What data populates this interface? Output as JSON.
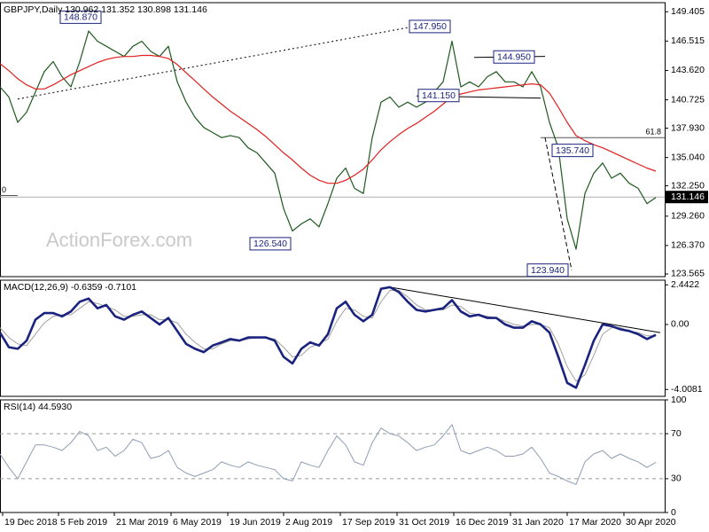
{
  "chart_data": [
    {
      "type": "line",
      "title": "GBPJPY,Daily  130.962 131.352 130.898 131.146",
      "watermark": "ActionForex.com",
      "xlim": [
        0,
        75
      ],
      "ylim": [
        123.3,
        150.3
      ],
      "grid": false,
      "yticks": [
        149.405,
        146.515,
        {
          "value": 143.62,
          "label": "143.620"
        },
        140.725,
        {
          "value": 137.93,
          "label": "137.930"
        },
        {
          "value": 135.04,
          "label": "135.040"
        },
        {
          "value": 132.25,
          "label": "132.250"
        },
        {
          "value": 129.26,
          "label": "129.260"
        },
        {
          "value": 126.37,
          "label": "126.370"
        },
        123.565
      ],
      "last_price": 131.146,
      "series": [
        {
          "color": "#1f5a1f",
          "line_width": 1.2,
          "values": [
            142.0,
            141.0,
            138.5,
            139.5,
            141.5,
            143.5,
            144.5,
            143.0,
            142.0,
            144.5,
            147.5,
            146.5,
            146.0,
            145.5,
            145.0,
            146.0,
            146.5,
            145.5,
            145.0,
            146.0,
            142.5,
            140.5,
            139.0,
            138.0,
            137.5,
            137.0,
            137.2,
            137.0,
            136.0,
            135.5,
            134.5,
            133.5,
            130.0,
            127.8,
            128.5,
            129.0,
            128.2,
            130.5,
            133.0,
            134.0,
            132.0,
            131.5,
            137.0,
            140.5,
            141.0,
            140.0,
            140.5,
            140.0,
            140.5,
            141.5,
            142.5,
            146.5,
            142.0,
            142.5,
            142.0,
            143.0,
            143.5,
            142.5,
            142.5,
            142.0,
            143.5,
            142.0,
            138.5,
            136.0,
            129.0,
            126.0,
            131.5,
            133.5,
            134.5,
            133.0,
            133.5,
            132.5,
            132.0,
            130.5,
            131.1
          ]
        },
        {
          "color": "#e0201e",
          "line_width": 1.2,
          "values": [
            144.3,
            143.6,
            142.8,
            142.2,
            141.8,
            141.8,
            142.2,
            142.7,
            143.2,
            143.6,
            144.0,
            144.4,
            144.7,
            144.9,
            145.0,
            145.0,
            145.1,
            145.1,
            145.0,
            144.8,
            144.2,
            143.4,
            142.6,
            141.8,
            141.0,
            140.3,
            139.6,
            139.0,
            138.4,
            137.8,
            137.1,
            136.3,
            135.5,
            134.8,
            134.0,
            133.3,
            132.8,
            132.5,
            132.5,
            132.8,
            133.3,
            133.9,
            134.8,
            135.8,
            136.6,
            137.3,
            137.9,
            138.4,
            139.0,
            139.6,
            140.3,
            141.0,
            141.3,
            141.5,
            141.7,
            141.8,
            141.9,
            142.0,
            142.1,
            142.2,
            142.3,
            142.2,
            141.4,
            140.0,
            138.5,
            137.2,
            136.7,
            136.3,
            136.0,
            135.6,
            135.2,
            134.8,
            134.4,
            134.0,
            133.7
          ]
        }
      ],
      "annotations": [
        {
          "x": 6.8,
          "value": 148.87,
          "label": "148.870"
        },
        {
          "x": 46.2,
          "value": 147.95,
          "label": "147.950"
        },
        {
          "x": 55.7,
          "value": 144.95,
          "label": "144.950"
        },
        {
          "x": 47.2,
          "value": 141.15,
          "label": "141.150"
        },
        {
          "x": 62.3,
          "value": 135.74,
          "label": "135.740"
        },
        {
          "x": 28.2,
          "value": 126.54,
          "label": "126.540"
        },
        {
          "x": 59.5,
          "value": 123.94,
          "label": "123.940"
        }
      ],
      "fib_levels": [
        {
          "name": "61.8",
          "y": 137.0,
          "x": [
            61,
            75
          ]
        },
        {
          "name": "0",
          "y": 131.3,
          "x": [
            0,
            2
          ]
        }
      ],
      "trendlines": [
        {
          "x": [
            2,
            47
          ],
          "y": [
            140.8,
            148.0
          ],
          "style": "dotted"
        },
        {
          "x": [
            53.5,
            61.5
          ],
          "y": [
            144.9,
            145.0
          ],
          "style": "solid"
        },
        {
          "x": [
            47,
            61
          ],
          "y": [
            141.1,
            140.9
          ],
          "style": "solid"
        },
        {
          "x": [
            61.5,
            64.5
          ],
          "y": [
            137.0,
            123.94
          ],
          "style": "dashed"
        }
      ]
    },
    {
      "type": "line",
      "title": "MACD(12,26,9) -0.6359 -0.7101",
      "xlim": [
        0,
        75
      ],
      "ylim": [
        -4.43,
        2.73
      ],
      "grid": false,
      "yticks": [
        2.4422,
        {
          "value": 0,
          "label": "0.00"
        },
        -4.0081
      ],
      "series": [
        {
          "color": "#a0a0a0",
          "line_width": 1,
          "values": [
            -0.2,
            -0.8,
            -1.2,
            -1.3,
            -0.6,
            0.1,
            0.5,
            0.6,
            0.6,
            1.0,
            1.4,
            1.3,
            1.1,
            0.9,
            0.5,
            0.5,
            0.6,
            0.6,
            0.3,
            0.3,
            0.1,
            -0.6,
            -1.1,
            -1.5,
            -1.5,
            -1.2,
            -1.0,
            -1.0,
            -0.9,
            -0.8,
            -0.8,
            -0.9,
            -1.4,
            -2.0,
            -1.9,
            -1.4,
            -1.2,
            -0.9,
            0.2,
            1.0,
            0.9,
            0.5,
            0.4,
            1.4,
            2.1,
            2.1,
            1.7,
            1.2,
            0.9,
            0.9,
            0.9,
            1.2,
            1.1,
            0.7,
            0.6,
            0.5,
            0.4,
            0.2,
            0.0,
            -0.1,
            0.0,
            0.0,
            -0.2,
            -1.2,
            -2.6,
            -3.5,
            -3.1,
            -1.9,
            -0.6,
            -0.2,
            -0.2,
            -0.4,
            -0.5,
            -0.7,
            -0.71
          ]
        },
        {
          "color": "#1a237e",
          "line_width": 2.6,
          "values": [
            -0.5,
            -1.4,
            -1.5,
            -1.0,
            0.3,
            0.7,
            0.7,
            0.5,
            0.8,
            1.4,
            1.6,
            1.0,
            1.2,
            0.5,
            0.3,
            0.6,
            0.8,
            0.4,
            0.0,
            0.4,
            -0.4,
            -1.2,
            -1.5,
            -1.7,
            -1.3,
            -1.1,
            -0.9,
            -1.0,
            -0.8,
            -0.8,
            -0.8,
            -1.0,
            -2.0,
            -2.4,
            -1.5,
            -1.1,
            -1.3,
            -0.6,
            1.0,
            1.4,
            0.6,
            0.2,
            0.6,
            2.2,
            2.3,
            2.0,
            1.4,
            0.9,
            0.8,
            0.9,
            1.0,
            1.5,
            0.8,
            0.5,
            0.6,
            0.4,
            0.4,
            0.0,
            -0.2,
            -0.2,
            0.2,
            0.0,
            -0.5,
            -2.0,
            -3.6,
            -3.9,
            -2.5,
            -1.0,
            0.0,
            -0.1,
            -0.3,
            -0.4,
            -0.6,
            -0.9,
            -0.64
          ]
        }
      ],
      "trendlines": [
        {
          "x": [
            44,
            74.5
          ],
          "y": [
            2.3,
            -0.5
          ],
          "style": "solid"
        }
      ]
    },
    {
      "type": "line",
      "title": "RSI(14) 44.5930",
      "xlim": [
        0,
        75
      ],
      "ylim": [
        0,
        100
      ],
      "grid": true,
      "yticks": [
        100,
        70,
        30,
        0
      ],
      "xticks": [
        {
          "value": 0.3,
          "label": "19 Dec 2018"
        },
        {
          "value": 6.6,
          "label": "5 Feb 2019"
        },
        {
          "value": 12.9,
          "label": "21 Mar 2019"
        },
        {
          "value": 19.3,
          "label": "6 May 2019"
        },
        {
          "value": 25.7,
          "label": "19 Jun 2019"
        },
        {
          "value": 32.0,
          "label": "2 Aug 2019"
        },
        {
          "value": 38.4,
          "label": "17 Sep 2019"
        },
        {
          "value": 44.8,
          "label": "31 Oct 2019"
        },
        {
          "value": 51.2,
          "label": "16 Dec 2019"
        },
        {
          "value": 57.6,
          "label": "31 Jan 2020"
        },
        {
          "value": 64.0,
          "label": "17 Mar 2020"
        },
        {
          "value": 70.4,
          "label": "30 Apr 2020"
        }
      ],
      "series": [
        {
          "color": "#8e9db5",
          "line_width": 1,
          "values": [
            52,
            40,
            30,
            45,
            60,
            60,
            58,
            55,
            62,
            72,
            68,
            55,
            58,
            50,
            55,
            65,
            62,
            48,
            50,
            55,
            40,
            35,
            32,
            35,
            38,
            45,
            42,
            40,
            45,
            42,
            40,
            38,
            30,
            28,
            45,
            42,
            40,
            55,
            68,
            60,
            45,
            42,
            62,
            75,
            70,
            68,
            62,
            55,
            58,
            60,
            68,
            78,
            55,
            52,
            55,
            58,
            55,
            50,
            50,
            52,
            58,
            48,
            35,
            32,
            28,
            25,
            45,
            52,
            55,
            48,
            52,
            48,
            45,
            40,
            44.6
          ]
        }
      ]
    }
  ]
}
